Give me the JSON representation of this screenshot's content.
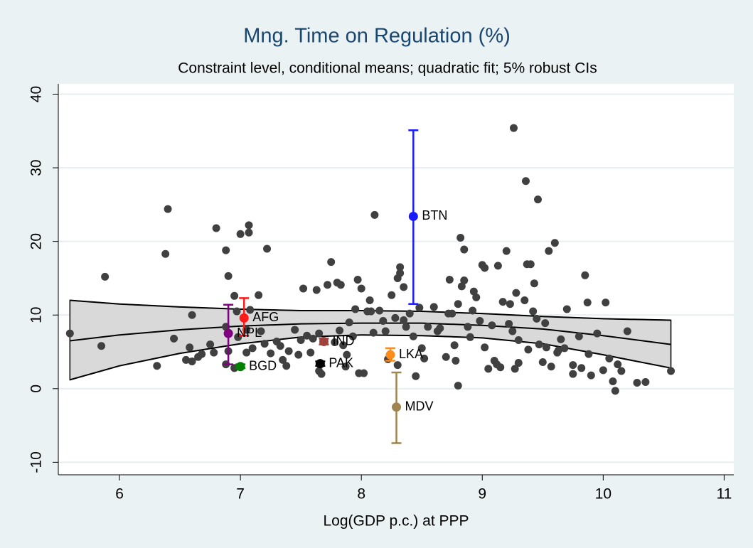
{
  "chart_data": {
    "type": "scatter",
    "title": "Mng. Time on Regulation (%)",
    "subtitle": "Constraint level, conditional means; quadratic fit; 5% robust CIs",
    "x_label": "Log(GDP p.c.) at PPP",
    "xlim": [
      5.494,
      11.08
    ],
    "ylim": [
      -11.7,
      41.4
    ],
    "xticks": [
      6,
      7,
      8,
      9,
      10,
      11
    ],
    "yticks": [
      -10,
      0,
      10,
      20,
      30,
      40
    ],
    "grid": true,
    "points": {
      "color": "#404040",
      "x": [
        5.59,
        5.85,
        5.88,
        6.31,
        6.38,
        6.4,
        6.45,
        6.55,
        6.58,
        6.6,
        6.6,
        6.65,
        6.68,
        6.75,
        6.78,
        6.8,
        6.88,
        6.9,
        6.88,
        6.9,
        6.88,
        6.95,
        6.97,
        7.0,
        6.98,
        6.95,
        7.05,
        7.07,
        7.07,
        7.08,
        7.1,
        7.05,
        7.15,
        7.17,
        7.2,
        7.22,
        7.25,
        7.3,
        7.33,
        7.35,
        7.38,
        7.4,
        7.45,
        7.48,
        7.5,
        7.52,
        7.55,
        7.58,
        7.6,
        7.63,
        7.65,
        7.65,
        7.67,
        7.72,
        7.75,
        7.78,
        7.8,
        7.83,
        7.82,
        7.85,
        7.87,
        7.88,
        7.9,
        7.93,
        7.95,
        7.97,
        7.98,
        8.0,
        8.02,
        8.05,
        8.07,
        8.08,
        8.1,
        8.11,
        8.15,
        8.18,
        8.2,
        8.22,
        8.25,
        8.28,
        8.3,
        8.32,
        8.32,
        8.3,
        8.35,
        8.35,
        8.37,
        8.4,
        8.43,
        8.45,
        8.48,
        8.5,
        8.52,
        8.55,
        8.6,
        8.63,
        8.65,
        8.7,
        8.72,
        8.73,
        8.75,
        8.77,
        8.78,
        8.8,
        8.8,
        8.82,
        8.85,
        8.83,
        8.85,
        8.88,
        8.9,
        8.92,
        8.93,
        8.95,
        8.98,
        9.0,
        9.02,
        9.02,
        9.05,
        9.08,
        9.1,
        9.12,
        9.13,
        9.15,
        9.17,
        9.2,
        9.22,
        9.23,
        9.25,
        9.27,
        9.28,
        9.3,
        9.3,
        9.26,
        9.35,
        9.38,
        9.4,
        9.42,
        9.37,
        9.43,
        9.36,
        9.45,
        9.47,
        9.5,
        9.52,
        9.53,
        9.55,
        9.46,
        9.57,
        9.6,
        9.62,
        9.63,
        9.65,
        9.68,
        9.7,
        9.75,
        9.75,
        9.8,
        9.82,
        9.85,
        9.87,
        9.88,
        9.9,
        9.95,
        10.0,
        10.02,
        10.05,
        10.08,
        10.1,
        10.12,
        10.15,
        10.2,
        10.28,
        10.35,
        10.56
      ],
      "y": [
        7.5,
        5.8,
        15.2,
        3.1,
        18.3,
        24.4,
        6.8,
        3.9,
        5.6,
        10.0,
        3.7,
        4.3,
        4.7,
        6.0,
        4.9,
        21.8,
        18.8,
        15.3,
        8.4,
        5.1,
        3.3,
        12.6,
        10.5,
        21.0,
        7.0,
        2.8,
        8.0,
        22.2,
        21.2,
        10.7,
        5.5,
        4.9,
        12.7,
        7.8,
        6.1,
        19.0,
        4.8,
        6.4,
        5.8,
        3.9,
        3.1,
        5.1,
        8.0,
        4.6,
        6.6,
        13.6,
        7.2,
        4.9,
        6.8,
        13.4,
        7.5,
        2.4,
        2.0,
        14.1,
        17.2,
        6.3,
        14.4,
        14.1,
        7.9,
        5.9,
        3.0,
        4.6,
        9.0,
        7.1,
        10.8,
        14.8,
        2.1,
        13.6,
        2.1,
        10.5,
        12.0,
        10.5,
        7.6,
        23.6,
        10.6,
        9.2,
        7.8,
        4.0,
        12.7,
        9.6,
        15.0,
        16.5,
        15.7,
        3.2,
        13.8,
        9.3,
        8.4,
        10.2,
        7.1,
        1.7,
        11.0,
        5.5,
        4.1,
        8.4,
        11.1,
        7.8,
        8.2,
        4.3,
        10.2,
        14.8,
        10.2,
        5.9,
        3.8,
        11.5,
        0.4,
        20.5,
        18.9,
        13.9,
        14.7,
        8.4,
        7.0,
        10.6,
        13.2,
        12.4,
        9.2,
        16.8,
        16.4,
        5.6,
        2.7,
        8.6,
        3.8,
        3.3,
        16.7,
        2.9,
        11.8,
        18.7,
        8.8,
        11.5,
        7.8,
        2.7,
        13.0,
        6.6,
        3.5,
        35.4,
        12.0,
        5.3,
        16.9,
        10.5,
        16.9,
        14.3,
        28.2,
        9.5,
        6.0,
        3.6,
        8.9,
        5.6,
        18.7,
        25.7,
        3.0,
        19.8,
        4.9,
        5.2,
        6.7,
        5.5,
        10.8,
        3.2,
        2.0,
        7.1,
        2.8,
        15.4,
        11.7,
        4.7,
        1.8,
        7.5,
        2.5,
        11.7,
        4.1,
        1.0,
        -0.3,
        3.3,
        2.4,
        7.8,
        0.8,
        0.9,
        2.4
      ]
    },
    "fit": {
      "color": "#d9d9d9",
      "x": [
        5.59,
        6,
        6.5,
        7,
        7.5,
        8,
        8.5,
        9,
        9.5,
        10,
        10.56
      ],
      "fit": [
        6.5,
        7.3,
        8.0,
        8.5,
        8.8,
        8.9,
        8.9,
        8.6,
        8.1,
        7.2,
        6.0
      ],
      "ci_upper": [
        12.0,
        11.5,
        11.1,
        10.8,
        10.6,
        10.6,
        10.5,
        10.2,
        9.8,
        9.5,
        9.3
      ],
      "ci_lower": [
        1.2,
        3.1,
        4.8,
        6.1,
        7.0,
        7.3,
        7.2,
        6.9,
        6.1,
        4.6,
        2.8
      ]
    },
    "highlights": [
      {
        "name": "BTN",
        "color": "#1a1aff",
        "x": 8.43,
        "y": 23.4,
        "ci": [
          11.5,
          35.1
        ]
      },
      {
        "name": "AFG",
        "color": "#ff1a1a",
        "x": 7.03,
        "y": 9.6,
        "ci": [
          7.2,
          12.3
        ]
      },
      {
        "name": "NPL",
        "color": "#800080",
        "x": 6.9,
        "y": 7.5,
        "ci": [
          3.3,
          11.4
        ]
      },
      {
        "name": "IND",
        "color": "#a0413c",
        "x": 7.69,
        "y": 6.4,
        "ci": [
          6.0,
          6.8
        ]
      },
      {
        "name": "BGD",
        "color": "#008000",
        "x": 7.0,
        "y": 3.0,
        "ci": [
          2.8,
          3.3
        ]
      },
      {
        "name": "PAK",
        "color": "#000000",
        "x": 7.66,
        "y": 3.4,
        "ci": [
          3.1,
          3.7
        ]
      },
      {
        "name": "LKA",
        "color": "#ff8c1a",
        "x": 8.24,
        "y": 4.6,
        "ci": [
          3.8,
          5.5
        ]
      },
      {
        "name": "MDV",
        "color": "#a08550",
        "x": 8.29,
        "y": -2.5,
        "ci": [
          -7.4,
          2.2
        ]
      }
    ]
  }
}
